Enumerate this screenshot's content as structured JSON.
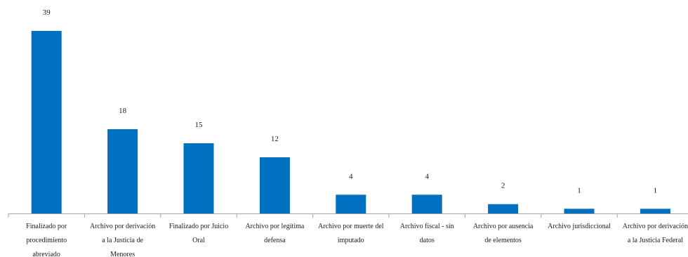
{
  "chart_data": {
    "type": "bar",
    "categories": [
      [
        "Finalizado por",
        "procedimiento",
        "abreviado"
      ],
      [
        "Archivo por derivación",
        "a la Justicia de",
        "Menores"
      ],
      [
        "Finalizado por Juicio",
        "Oral"
      ],
      [
        "Archivo por legítima",
        "defensa"
      ],
      [
        "Archivo por muerte del",
        "imputado"
      ],
      [
        "Archivo fiscal - sin",
        "datos"
      ],
      [
        "Archivo por ausencia",
        "de elementos"
      ],
      [
        "Archivo jurisdiccional"
      ],
      [
        "Archivo por derivación",
        "a la Justicia Federal"
      ]
    ],
    "values": [
      39,
      18,
      15,
      12,
      4,
      4,
      2,
      1,
      1
    ],
    "ylim": [
      0,
      39
    ],
    "grid": false,
    "legend": "none",
    "bar_color": "#0070C0",
    "axis_color": "#A6A6A6",
    "title": "",
    "xlabel": "",
    "ylabel": ""
  }
}
